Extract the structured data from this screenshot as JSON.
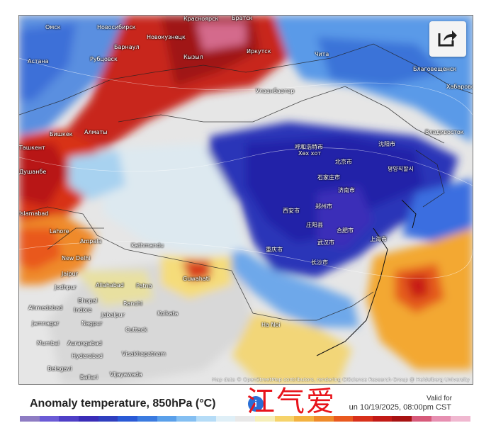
{
  "map": {
    "attribution": "Map data © OpenStreetMap contributors, rendering GIScience Research Group @ Heidelberg University",
    "cities": [
      {
        "name": "Омск"
      },
      {
        "name": "Новосибирск"
      },
      {
        "name": "Барнаул"
      },
      {
        "name": "Новокузнецк"
      },
      {
        "name": "Красноярск"
      },
      {
        "name": "Братск"
      },
      {
        "name": "Иркутск"
      },
      {
        "name": "Кызыл"
      },
      {
        "name": "Астана"
      },
      {
        "name": "Рубцовск"
      },
      {
        "name": "Бишкек"
      },
      {
        "name": "Алматы"
      },
      {
        "name": "Ташкент"
      },
      {
        "name": "Душанбе"
      },
      {
        "name": "Улаанбаатар"
      },
      {
        "name": "Чита"
      },
      {
        "name": "Благовещенск"
      },
      {
        "name": "Хабаровск"
      },
      {
        "name": "Владивосток"
      },
      {
        "name": "呼和浩特市"
      },
      {
        "name": "Хөх хот"
      },
      {
        "name": "北京市"
      },
      {
        "name": "沈阳市"
      },
      {
        "name": "평양직할시"
      },
      {
        "name": "石家庄市"
      },
      {
        "name": "济南市"
      },
      {
        "name": "西安市"
      },
      {
        "name": "郑州市"
      },
      {
        "name": "庄阳县"
      },
      {
        "name": "合肥市"
      },
      {
        "name": "武汉市"
      },
      {
        "name": "上海市"
      },
      {
        "name": "长沙市"
      },
      {
        "name": "重庆市"
      },
      {
        "name": "Islamabad"
      },
      {
        "name": "Lahore"
      },
      {
        "name": "New Delhi"
      },
      {
        "name": "Kathmandu"
      },
      {
        "name": "Jaipur"
      },
      {
        "name": "Allahabad"
      },
      {
        "name": "Patna"
      },
      {
        "name": "Guwahati"
      },
      {
        "name": "Jodhpur"
      },
      {
        "name": "Ahmedabad"
      },
      {
        "name": "Indore"
      },
      {
        "name": "Jabalpur"
      },
      {
        "name": "Ranchi"
      },
      {
        "name": "Kolkata"
      },
      {
        "name": "Nagpur"
      },
      {
        "name": "Cuttack"
      },
      {
        "name": "Jamnagar"
      },
      {
        "name": "Mumbai"
      },
      {
        "name": "Aurangabad"
      },
      {
        "name": "Hyderabad"
      },
      {
        "name": "Visakhapatnam"
      },
      {
        "name": "Belagavi"
      },
      {
        "name": "Vijayawada"
      },
      {
        "name": "Ballari"
      },
      {
        "name": "Ha Noi"
      },
      {
        "name": "Ampala"
      },
      {
        "name": "Bhopal"
      }
    ]
  },
  "footer": {
    "title": "Anomaly temperature, 850hPa (°C)",
    "info_icon": "i",
    "watermark": "江气爱",
    "valid_for_label": "Valid for",
    "valid_datetime": "un 10/19/2025, 08:00pm CST"
  },
  "colors": {
    "colorbar": [
      "#8e7cc3",
      "#6b5bd6",
      "#4f3fc7",
      "#3a2db8",
      "#2f3fbf",
      "#2a5ad6",
      "#3b7be0",
      "#5aa0ea",
      "#84bff2",
      "#b5dcf7",
      "#dfeff7",
      "#e8e8e8",
      "#f5eeb8",
      "#f6d36a",
      "#f3b240",
      "#ef8a2a",
      "#e9591f",
      "#d8301a",
      "#c21a16",
      "#a81212",
      "#d75a7a",
      "#e78fb1",
      "#f0b8d0"
    ]
  },
  "icons": {
    "share": "share-icon"
  }
}
